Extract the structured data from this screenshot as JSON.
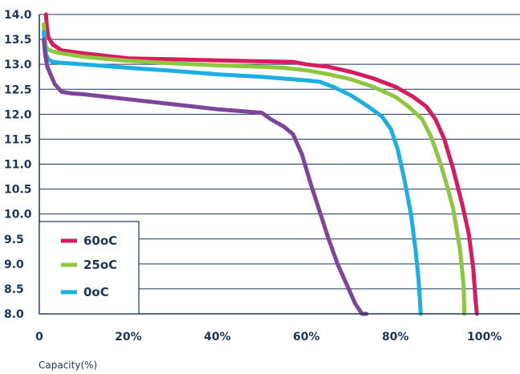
{
  "chart_data": {
    "type": "line",
    "xlabel": "Capacity(%)",
    "ylabel": "",
    "title": "",
    "xlim": [
      0,
      108
    ],
    "ylim": [
      8.0,
      14.0
    ],
    "x_ticks": [
      0,
      20,
      40,
      60,
      80,
      100
    ],
    "x_tick_labels": [
      "0",
      "20%",
      "40%",
      "60%",
      "80%",
      "100%"
    ],
    "y_ticks": [
      8.0,
      8.5,
      9.0,
      9.5,
      10.0,
      10.5,
      11.0,
      11.5,
      12.0,
      12.5,
      13.0,
      13.5,
      14.0
    ],
    "y_tick_labels": [
      "8.0",
      "8.5",
      "9.0",
      "9.5",
      "10.0",
      "10.5",
      "11.0",
      "11.5",
      "12.0",
      "12.5",
      "13.0",
      "13.5",
      "14.0"
    ],
    "grid": "horizontal",
    "legend_position": "bottom-left",
    "series": [
      {
        "name": "60oC",
        "color": "#d81b60",
        "x": [
          1.5,
          1.7,
          2,
          3,
          5,
          10,
          20,
          30,
          40,
          50,
          57,
          60,
          65,
          70,
          75,
          80,
          84,
          87,
          89,
          91,
          93,
          95,
          96.5,
          97.5,
          98,
          98.3
        ],
        "y": [
          14.0,
          13.75,
          13.55,
          13.4,
          13.28,
          13.22,
          13.12,
          13.1,
          13.08,
          13.06,
          13.05,
          13.0,
          12.95,
          12.85,
          12.72,
          12.55,
          12.35,
          12.15,
          11.9,
          11.5,
          10.9,
          10.2,
          9.6,
          8.9,
          8.3,
          8.0
        ]
      },
      {
        "name": "25oC",
        "color": "#8dc63f",
        "x": [
          1,
          1.2,
          1.5,
          2,
          3,
          5,
          10,
          20,
          30,
          40,
          50,
          55,
          60,
          65,
          70,
          75,
          80,
          83,
          86,
          88,
          90,
          91.5,
          93,
          94.5,
          95.3,
          95.5
        ],
        "y": [
          13.8,
          13.5,
          13.35,
          13.3,
          13.26,
          13.22,
          13.15,
          13.07,
          13.02,
          12.98,
          12.95,
          12.93,
          12.88,
          12.8,
          12.7,
          12.55,
          12.35,
          12.15,
          11.9,
          11.55,
          11.05,
          10.6,
          10.1,
          9.3,
          8.6,
          8.0
        ]
      },
      {
        "name": "0oC",
        "color": "#1daee3",
        "x": [
          1,
          1.2,
          1.5,
          2,
          3,
          5,
          10,
          20,
          30,
          40,
          50,
          60,
          63,
          66,
          70,
          74,
          77,
          79,
          80.5,
          82,
          83.5,
          84.5,
          85.2,
          85.5,
          85.7
        ],
        "y": [
          13.65,
          13.4,
          13.2,
          13.1,
          13.05,
          13.03,
          13.0,
          12.93,
          12.87,
          12.8,
          12.75,
          12.68,
          12.65,
          12.55,
          12.38,
          12.15,
          11.95,
          11.7,
          11.3,
          10.7,
          10.0,
          9.3,
          8.7,
          8.3,
          8.0
        ]
      },
      {
        "name": "",
        "color": "#7e4698",
        "x": [
          1,
          1.3,
          1.8,
          2.5,
          3.5,
          5,
          7,
          10,
          15,
          20,
          30,
          40,
          50,
          52,
          55,
          57,
          59,
          61,
          63,
          65,
          67,
          69,
          71,
          72.5,
          73.5
        ],
        "y": [
          13.5,
          13.2,
          12.95,
          12.8,
          12.6,
          12.45,
          12.42,
          12.4,
          12.35,
          12.3,
          12.2,
          12.1,
          12.03,
          11.9,
          11.75,
          11.6,
          11.2,
          10.6,
          10.05,
          9.5,
          9.0,
          8.6,
          8.2,
          8.0,
          8.0
        ]
      }
    ],
    "legend": [
      "60oC",
      "25oC",
      "0oC"
    ]
  }
}
